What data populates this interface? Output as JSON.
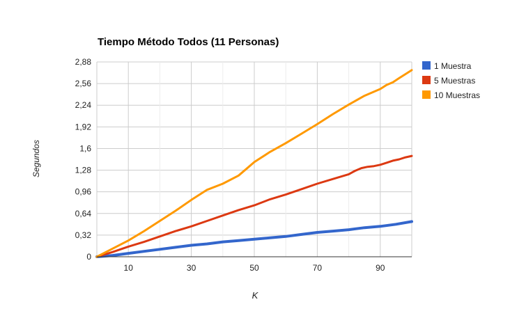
{
  "chart_data": {
    "type": "line",
    "title": "Tiempo Método Todos (11 Personas)",
    "xlabel": "K",
    "ylabel": "Segundos",
    "xlim": [
      0,
      100
    ],
    "ylim": [
      0,
      2.88
    ],
    "xticks": [
      10,
      30,
      50,
      70,
      90
    ],
    "xtick_labels": [
      "10",
      "30",
      "50",
      "70",
      "90"
    ],
    "yticks": [
      0,
      0.32,
      0.64,
      0.96,
      1.28,
      1.6,
      1.92,
      2.24,
      2.56,
      2.88
    ],
    "ytick_labels": [
      "0",
      "0,32",
      "0,64",
      "0,96",
      "1,28",
      "1,6",
      "1,92",
      "2,24",
      "2,56",
      "2,88"
    ],
    "grid": true,
    "legend_position": "right",
    "series": [
      {
        "name": "1 Muestra",
        "color": "#3366cc",
        "x": [
          0,
          5,
          10,
          15,
          20,
          25,
          30,
          35,
          40,
          45,
          50,
          55,
          60,
          65,
          70,
          75,
          80,
          85,
          90,
          95,
          100
        ],
        "values": [
          0.0,
          0.02,
          0.05,
          0.08,
          0.11,
          0.14,
          0.17,
          0.19,
          0.22,
          0.24,
          0.26,
          0.28,
          0.3,
          0.33,
          0.36,
          0.38,
          0.4,
          0.43,
          0.45,
          0.48,
          0.52
        ]
      },
      {
        "name": "5 Muestras",
        "color": "#dc3912",
        "x": [
          0,
          5,
          10,
          15,
          20,
          25,
          30,
          35,
          40,
          45,
          50,
          55,
          60,
          65,
          70,
          75,
          80,
          82,
          84,
          86,
          88,
          90,
          92,
          94,
          96,
          98,
          100
        ],
        "values": [
          0.0,
          0.07,
          0.15,
          0.22,
          0.3,
          0.38,
          0.45,
          0.53,
          0.61,
          0.69,
          0.76,
          0.85,
          0.92,
          1.0,
          1.08,
          1.15,
          1.22,
          1.27,
          1.31,
          1.33,
          1.34,
          1.36,
          1.39,
          1.42,
          1.44,
          1.47,
          1.49
        ]
      },
      {
        "name": "10 Muestras",
        "color": "#ff9900",
        "x": [
          0,
          5,
          10,
          15,
          20,
          25,
          30,
          35,
          40,
          45,
          48,
          50,
          55,
          60,
          65,
          70,
          75,
          80,
          85,
          90,
          92,
          94,
          96,
          98,
          100
        ],
        "values": [
          0.0,
          0.12,
          0.24,
          0.38,
          0.53,
          0.68,
          0.84,
          0.99,
          1.08,
          1.2,
          1.32,
          1.4,
          1.55,
          1.68,
          1.82,
          1.96,
          2.11,
          2.25,
          2.38,
          2.48,
          2.54,
          2.58,
          2.64,
          2.7,
          2.76
        ]
      }
    ]
  }
}
